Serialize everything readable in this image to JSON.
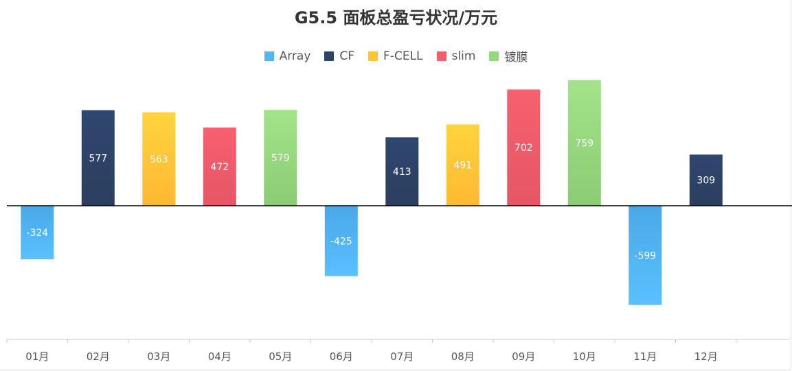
{
  "chart_data": {
    "type": "bar",
    "title": "G5.5 面板总盈亏状况/万元",
    "categories": [
      "01月",
      "02月",
      "03月",
      "04月",
      "05月",
      "06月",
      "07月",
      "08月",
      "09月",
      "10月",
      "11月",
      "12月"
    ],
    "values": [
      -324,
      577,
      563,
      472,
      579,
      -425,
      413,
      491,
      702,
      759,
      -599,
      309
    ],
    "bar_series": [
      "Array",
      "CF",
      "F-CELL",
      "slim",
      "镀膜",
      "Array",
      "CF",
      "F-CELL",
      "slim",
      "镀膜",
      "Array",
      "CF"
    ],
    "legend": [
      {
        "name": "Array",
        "color": "#52b6f2"
      },
      {
        "name": "CF",
        "color": "#2e4466"
      },
      {
        "name": "F-CELL",
        "color": "#ffc535"
      },
      {
        "name": "slim",
        "color": "#f55c6c"
      },
      {
        "name": "镀膜",
        "color": "#96d87e"
      }
    ],
    "legend_position": "top-center",
    "ylim": [
      -800,
      800
    ],
    "grid": false,
    "xlabel": "",
    "ylabel": ""
  }
}
